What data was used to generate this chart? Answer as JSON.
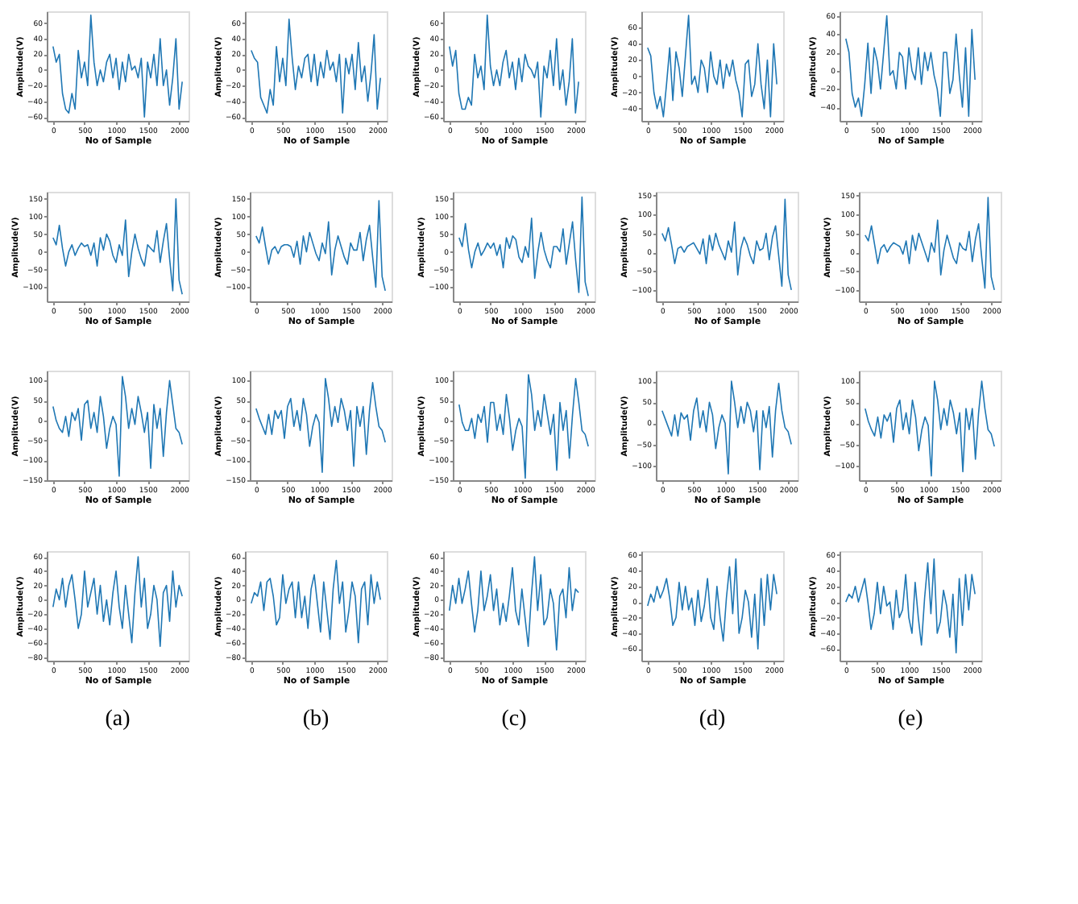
{
  "chart_data": [
    {
      "type": "line",
      "xlabel": "No of Sample",
      "ylabel": "Amplitude(V)",
      "xlim": [
        -100,
        2150
      ],
      "xticks": [
        0,
        500,
        1000,
        1500,
        2000
      ],
      "ylim": [
        -65,
        75
      ],
      "yticks": [
        -60,
        -40,
        -20,
        0,
        20,
        40,
        60
      ],
      "grid": false,
      "x": [
        0,
        50,
        100,
        150,
        200,
        250,
        300,
        350,
        400,
        450,
        500,
        550,
        600,
        650,
        700,
        750,
        800,
        850,
        900,
        950,
        1000,
        1050,
        1100,
        1150,
        1200,
        1250,
        1300,
        1350,
        1400,
        1450,
        1500,
        1550,
        1600,
        1650,
        1700,
        1750,
        1800,
        1850,
        1900,
        1950,
        2000,
        2050
      ],
      "series": [
        {
          "color": "#1f77b4",
          "values": [
            30,
            10,
            20,
            -30,
            -50,
            -55,
            -30,
            -50,
            25,
            -10,
            10,
            -20,
            70,
            10,
            -20,
            0,
            -15,
            10,
            20,
            -10,
            15,
            -25,
            10,
            -15,
            20,
            0,
            5,
            -10,
            15,
            -60,
            10,
            -10,
            20,
            -20,
            40,
            -20,
            0,
            -45,
            -10,
            40,
            -50,
            -15
          ]
        }
      ]
    },
    {
      "type": "line",
      "xlabel": "No of Sample",
      "ylabel": "Amplitude(V)",
      "xlim": [
        -100,
        2150
      ],
      "xticks": [
        0,
        500,
        1000,
        1500,
        2000
      ],
      "ylim": [
        -65,
        75
      ],
      "yticks": [
        -60,
        -40,
        -20,
        0,
        20,
        40,
        60
      ],
      "grid": false,
      "x": [
        0,
        50,
        100,
        150,
        200,
        250,
        300,
        350,
        400,
        450,
        500,
        550,
        600,
        650,
        700,
        750,
        800,
        850,
        900,
        950,
        1000,
        1050,
        1100,
        1150,
        1200,
        1250,
        1300,
        1350,
        1400,
        1450,
        1500,
        1550,
        1600,
        1650,
        1700,
        1750,
        1800,
        1850,
        1900,
        1950,
        2000,
        2050
      ],
      "series": [
        {
          "color": "#1f77b4",
          "values": [
            25,
            15,
            10,
            -35,
            -45,
            -55,
            -25,
            -45,
            30,
            -15,
            15,
            -20,
            65,
            15,
            -25,
            5,
            -10,
            15,
            20,
            -15,
            20,
            -20,
            10,
            -10,
            25,
            0,
            10,
            -15,
            20,
            -55,
            15,
            -5,
            20,
            -25,
            35,
            -15,
            5,
            -40,
            -5,
            45,
            -50,
            -10
          ]
        }
      ]
    },
    {
      "type": "line",
      "xlabel": "No of Sample",
      "ylabel": "Amplitude(V)",
      "xlim": [
        -100,
        2150
      ],
      "xticks": [
        0,
        500,
        1000,
        1500,
        2000
      ],
      "ylim": [
        -65,
        75
      ],
      "yticks": [
        -60,
        -40,
        -20,
        0,
        20,
        40,
        60
      ],
      "grid": false,
      "x": [
        0,
        50,
        100,
        150,
        200,
        250,
        300,
        350,
        400,
        450,
        500,
        550,
        600,
        650,
        700,
        750,
        800,
        850,
        900,
        950,
        1000,
        1050,
        1100,
        1150,
        1200,
        1250,
        1300,
        1350,
        1400,
        1450,
        1500,
        1550,
        1600,
        1650,
        1700,
        1750,
        1800,
        1850,
        1900,
        1950,
        2000,
        2050
      ],
      "series": [
        {
          "color": "#1f77b4",
          "values": [
            30,
            5,
            25,
            -30,
            -50,
            -50,
            -35,
            -45,
            20,
            -10,
            5,
            -25,
            70,
            5,
            -20,
            0,
            -20,
            10,
            25,
            -10,
            10,
            -25,
            15,
            -15,
            20,
            5,
            0,
            -10,
            10,
            -60,
            5,
            -10,
            25,
            -20,
            40,
            -25,
            0,
            -45,
            -15,
            40,
            -55,
            -15
          ]
        }
      ]
    },
    {
      "type": "line",
      "xlabel": "No of Sample",
      "ylabel": "Amplitude(V)",
      "xlim": [
        -100,
        2150
      ],
      "xticks": [
        0,
        500,
        1000,
        1500,
        2000
      ],
      "ylim": [
        -55,
        80
      ],
      "yticks": [
        -40,
        -20,
        0,
        20,
        40,
        60
      ],
      "grid": false,
      "x": [
        0,
        50,
        100,
        150,
        200,
        250,
        300,
        350,
        400,
        450,
        500,
        550,
        600,
        650,
        700,
        750,
        800,
        850,
        900,
        950,
        1000,
        1050,
        1100,
        1150,
        1200,
        1250,
        1300,
        1350,
        1400,
        1450,
        1500,
        1550,
        1600,
        1650,
        1700,
        1750,
        1800,
        1850,
        1900,
        1950,
        2000,
        2050
      ],
      "series": [
        {
          "color": "#1f77b4",
          "values": [
            35,
            25,
            -20,
            -40,
            -25,
            -50,
            -10,
            35,
            -30,
            30,
            10,
            -25,
            25,
            75,
            -10,
            0,
            -20,
            20,
            10,
            -20,
            30,
            0,
            -10,
            20,
            -15,
            15,
            0,
            20,
            -5,
            -20,
            -50,
            15,
            20,
            -25,
            -10,
            40,
            -10,
            -40,
            20,
            -50,
            40,
            -10
          ]
        }
      ]
    },
    {
      "type": "line",
      "xlabel": "No of Sample",
      "ylabel": "Amplitude(V)",
      "xlim": [
        -100,
        2150
      ],
      "xticks": [
        0,
        500,
        1000,
        1500,
        2000
      ],
      "ylim": [
        -55,
        65
      ],
      "yticks": [
        -40,
        -20,
        0,
        20,
        40,
        60
      ],
      "grid": false,
      "x": [
        0,
        50,
        100,
        150,
        200,
        250,
        300,
        350,
        400,
        450,
        500,
        550,
        600,
        650,
        700,
        750,
        800,
        850,
        900,
        950,
        1000,
        1050,
        1100,
        1150,
        1200,
        1250,
        1300,
        1350,
        1400,
        1450,
        1500,
        1550,
        1600,
        1650,
        1700,
        1750,
        1800,
        1850,
        1900,
        1950,
        2000,
        2050
      ],
      "series": [
        {
          "color": "#1f77b4",
          "values": [
            35,
            20,
            -25,
            -40,
            -30,
            -50,
            -15,
            30,
            -25,
            25,
            10,
            -20,
            20,
            60,
            -5,
            0,
            -20,
            20,
            15,
            -20,
            25,
            0,
            -10,
            25,
            -15,
            20,
            0,
            20,
            -5,
            -20,
            -50,
            20,
            20,
            -25,
            -10,
            40,
            -5,
            -40,
            25,
            -50,
            45,
            -10
          ]
        }
      ]
    },
    {
      "type": "line",
      "xlabel": "No of Sample",
      "ylabel": "Amplitude(V)",
      "xlim": [
        -100,
        2150
      ],
      "xticks": [
        0,
        500,
        1000,
        1500,
        2000
      ],
      "ylim": [
        -140,
        170
      ],
      "yticks": [
        -100,
        -50,
        0,
        50,
        100,
        150
      ],
      "grid": false,
      "x": [
        0,
        50,
        100,
        150,
        200,
        250,
        300,
        350,
        400,
        450,
        500,
        550,
        600,
        650,
        700,
        750,
        800,
        850,
        900,
        950,
        1000,
        1050,
        1100,
        1150,
        1200,
        1250,
        1300,
        1350,
        1400,
        1450,
        1500,
        1550,
        1600,
        1650,
        1700,
        1750,
        1800,
        1850,
        1900,
        1950,
        2000,
        2050
      ],
      "series": [
        {
          "color": "#1f77b4",
          "values": [
            40,
            20,
            75,
            10,
            -40,
            0,
            20,
            -10,
            10,
            25,
            15,
            20,
            -10,
            25,
            -40,
            40,
            5,
            50,
            30,
            -10,
            -30,
            20,
            -10,
            90,
            -70,
            0,
            50,
            10,
            -20,
            -40,
            20,
            10,
            0,
            60,
            -30,
            30,
            80,
            -20,
            -110,
            150,
            -80,
            -120
          ]
        }
      ]
    },
    {
      "type": "line",
      "xlabel": "No of Sample",
      "ylabel": "Amplitude(V)",
      "xlim": [
        -100,
        2150
      ],
      "xticks": [
        0,
        500,
        1000,
        1500,
        2000
      ],
      "ylim": [
        -140,
        170
      ],
      "yticks": [
        -100,
        -50,
        0,
        50,
        100,
        150
      ],
      "grid": false,
      "x": [
        0,
        50,
        100,
        150,
        200,
        250,
        300,
        350,
        400,
        450,
        500,
        550,
        600,
        650,
        700,
        750,
        800,
        850,
        900,
        950,
        1000,
        1050,
        1100,
        1150,
        1200,
        1250,
        1300,
        1350,
        1400,
        1450,
        1500,
        1550,
        1600,
        1650,
        1700,
        1750,
        1800,
        1850,
        1900,
        1950,
        2000,
        2050
      ],
      "series": [
        {
          "color": "#1f77b4",
          "values": [
            45,
            25,
            70,
            15,
            -35,
            5,
            15,
            -5,
            15,
            20,
            20,
            15,
            -15,
            30,
            -35,
            45,
            0,
            55,
            25,
            -5,
            -25,
            25,
            -5,
            85,
            -65,
            5,
            45,
            15,
            -15,
            -35,
            25,
            5,
            5,
            55,
            -25,
            35,
            75,
            -15,
            -100,
            145,
            -70,
            -110
          ]
        }
      ]
    },
    {
      "type": "line",
      "xlabel": "No of Sample",
      "ylabel": "Amplitude(V)",
      "xlim": [
        -100,
        2150
      ],
      "xticks": [
        0,
        500,
        1000,
        1500,
        2000
      ],
      "ylim": [
        -140,
        170
      ],
      "yticks": [
        -100,
        -50,
        0,
        50,
        100,
        150
      ],
      "grid": false,
      "x": [
        0,
        50,
        100,
        150,
        200,
        250,
        300,
        350,
        400,
        450,
        500,
        550,
        600,
        650,
        700,
        750,
        800,
        850,
        900,
        950,
        1000,
        1050,
        1100,
        1150,
        1200,
        1250,
        1300,
        1350,
        1400,
        1450,
        1500,
        1550,
        1600,
        1650,
        1700,
        1750,
        1800,
        1850,
        1900,
        1950,
        2000,
        2050
      ],
      "series": [
        {
          "color": "#1f77b4",
          "values": [
            40,
            15,
            80,
            5,
            -45,
            0,
            25,
            -10,
            5,
            25,
            10,
            25,
            -10,
            20,
            -45,
            40,
            10,
            45,
            35,
            -15,
            -30,
            15,
            -15,
            95,
            -75,
            0,
            55,
            5,
            -25,
            -45,
            15,
            15,
            0,
            65,
            -35,
            25,
            85,
            -25,
            -115,
            155,
            -85,
            -125
          ]
        }
      ]
    },
    {
      "type": "line",
      "xlabel": "No of Sample",
      "ylabel": "Amplitude(V)",
      "xlim": [
        -100,
        2150
      ],
      "xticks": [
        0,
        500,
        1000,
        1500,
        2000
      ],
      "ylim": [
        -130,
        160
      ],
      "yticks": [
        -100,
        -50,
        0,
        50,
        100,
        150
      ],
      "grid": false,
      "x": [
        0,
        50,
        100,
        150,
        200,
        250,
        300,
        350,
        400,
        450,
        500,
        550,
        600,
        650,
        700,
        750,
        800,
        850,
        900,
        950,
        1000,
        1050,
        1100,
        1150,
        1200,
        1250,
        1300,
        1350,
        1400,
        1450,
        1500,
        1550,
        1600,
        1650,
        1700,
        1750,
        1800,
        1850,
        1900,
        1950,
        2000,
        2050
      ],
      "series": [
        {
          "color": "#1f77b4",
          "values": [
            50,
            30,
            65,
            20,
            -30,
            10,
            15,
            0,
            15,
            20,
            25,
            10,
            -5,
            35,
            -30,
            45,
            5,
            50,
            20,
            0,
            -20,
            30,
            0,
            80,
            -60,
            10,
            40,
            20,
            -10,
            -30,
            30,
            5,
            10,
            50,
            -20,
            40,
            70,
            -10,
            -90,
            140,
            -60,
            -100
          ]
        }
      ]
    },
    {
      "type": "line",
      "xlabel": "No of Sample",
      "ylabel": "Amplitude(V)",
      "xlim": [
        -100,
        2150
      ],
      "xticks": [
        0,
        500,
        1000,
        1500,
        2000
      ],
      "ylim": [
        -130,
        160
      ],
      "yticks": [
        -100,
        -50,
        0,
        50,
        100,
        150
      ],
      "grid": false,
      "x": [
        0,
        50,
        100,
        150,
        200,
        250,
        300,
        350,
        400,
        450,
        500,
        550,
        600,
        650,
        700,
        750,
        800,
        850,
        900,
        950,
        1000,
        1050,
        1100,
        1150,
        1200,
        1250,
        1300,
        1350,
        1400,
        1450,
        1500,
        1550,
        1600,
        1650,
        1700,
        1750,
        1800,
        1850,
        1900,
        1950,
        2000,
        2050
      ],
      "series": [
        {
          "color": "#1f77b4",
          "values": [
            45,
            30,
            70,
            20,
            -30,
            10,
            20,
            0,
            15,
            25,
            20,
            15,
            -5,
            30,
            -30,
            45,
            5,
            50,
            25,
            0,
            -25,
            25,
            0,
            85,
            -60,
            5,
            45,
            15,
            -15,
            -30,
            25,
            10,
            5,
            55,
            -25,
            35,
            75,
            -15,
            -95,
            145,
            -65,
            -100
          ]
        }
      ]
    },
    {
      "type": "line",
      "xlabel": "No of Sample",
      "ylabel": "Amplitude(V)",
      "xlim": [
        -100,
        2150
      ],
      "xticks": [
        0,
        500,
        1000,
        1500,
        2000
      ],
      "ylim": [
        -150,
        125
      ],
      "yticks": [
        -150,
        -100,
        -50,
        0,
        50,
        100
      ],
      "grid": false,
      "x": [
        0,
        50,
        100,
        150,
        200,
        250,
        300,
        350,
        400,
        450,
        500,
        550,
        600,
        650,
        700,
        750,
        800,
        850,
        900,
        950,
        1000,
        1050,
        1100,
        1150,
        1200,
        1250,
        1300,
        1350,
        1400,
        1450,
        1500,
        1550,
        1600,
        1650,
        1700,
        1750,
        1800,
        1850,
        1900,
        1950,
        2000,
        2050
      ],
      "series": [
        {
          "color": "#1f77b4",
          "values": [
            35,
            0,
            -20,
            -30,
            10,
            -40,
            20,
            0,
            30,
            -50,
            40,
            50,
            -20,
            20,
            -30,
            60,
            10,
            -70,
            -20,
            10,
            -10,
            -140,
            110,
            60,
            -20,
            30,
            -10,
            60,
            20,
            -30,
            20,
            -120,
            40,
            -20,
            30,
            -90,
            20,
            100,
            40,
            -20,
            -30,
            -60
          ]
        }
      ]
    },
    {
      "type": "line",
      "xlabel": "No of Sample",
      "ylabel": "Amplitude(V)",
      "xlim": [
        -100,
        2150
      ],
      "xticks": [
        0,
        500,
        1000,
        1500,
        2000
      ],
      "ylim": [
        -150,
        125
      ],
      "yticks": [
        -150,
        -100,
        -50,
        0,
        50,
        100
      ],
      "grid": false,
      "x": [
        0,
        50,
        100,
        150,
        200,
        250,
        300,
        350,
        400,
        450,
        500,
        550,
        600,
        650,
        700,
        750,
        800,
        850,
        900,
        950,
        1000,
        1050,
        1100,
        1150,
        1200,
        1250,
        1300,
        1350,
        1400,
        1450,
        1500,
        1550,
        1600,
        1650,
        1700,
        1750,
        1800,
        1850,
        1900,
        1950,
        2000,
        2050
      ],
      "series": [
        {
          "color": "#1f77b4",
          "values": [
            30,
            5,
            -15,
            -35,
            15,
            -35,
            25,
            5,
            25,
            -45,
            35,
            55,
            -15,
            25,
            -25,
            55,
            15,
            -65,
            -15,
            15,
            -5,
            -130,
            105,
            55,
            -15,
            35,
            -5,
            55,
            25,
            -25,
            25,
            -115,
            35,
            -15,
            35,
            -85,
            25,
            95,
            35,
            -15,
            -25,
            -55
          ]
        }
      ]
    },
    {
      "type": "line",
      "xlabel": "No of Sample",
      "ylabel": "Amplitude(V)",
      "xlim": [
        -100,
        2150
      ],
      "xticks": [
        0,
        500,
        1000,
        1500,
        2000
      ],
      "ylim": [
        -150,
        125
      ],
      "yticks": [
        -150,
        -100,
        -50,
        0,
        50,
        100
      ],
      "grid": false,
      "x": [
        0,
        50,
        100,
        150,
        200,
        250,
        300,
        350,
        400,
        450,
        500,
        550,
        600,
        650,
        700,
        750,
        800,
        850,
        900,
        950,
        1000,
        1050,
        1100,
        1150,
        1200,
        1250,
        1300,
        1350,
        1400,
        1450,
        1500,
        1550,
        1600,
        1650,
        1700,
        1750,
        1800,
        1850,
        1900,
        1950,
        2000,
        2050
      ],
      "series": [
        {
          "color": "#1f77b4",
          "values": [
            40,
            -5,
            -25,
            -25,
            5,
            -45,
            15,
            -5,
            35,
            -55,
            45,
            45,
            -25,
            15,
            -35,
            65,
            5,
            -75,
            -25,
            5,
            -15,
            -145,
            115,
            65,
            -25,
            25,
            -15,
            65,
            15,
            -35,
            15,
            -125,
            45,
            -25,
            25,
            -95,
            15,
            105,
            45,
            -25,
            -35,
            -65
          ]
        }
      ]
    },
    {
      "type": "line",
      "xlabel": "No of Sample",
      "ylabel": "Amplitude(V)",
      "xlim": [
        -100,
        2150
      ],
      "xticks": [
        0,
        500,
        1000,
        1500,
        2000
      ],
      "ylim": [
        -135,
        125
      ],
      "yticks": [
        -100,
        -50,
        0,
        50,
        100
      ],
      "grid": false,
      "x": [
        0,
        50,
        100,
        150,
        200,
        250,
        300,
        350,
        400,
        450,
        500,
        550,
        600,
        650,
        700,
        750,
        800,
        850,
        900,
        950,
        1000,
        1050,
        1100,
        1150,
        1200,
        1250,
        1300,
        1350,
        1400,
        1450,
        1500,
        1550,
        1600,
        1650,
        1700,
        1750,
        1800,
        1850,
        1900,
        1950,
        2000,
        2050
      ],
      "series": [
        {
          "color": "#1f77b4",
          "values": [
            30,
            10,
            -10,
            -30,
            20,
            -30,
            25,
            10,
            20,
            -40,
            30,
            60,
            -10,
            30,
            -20,
            50,
            20,
            -60,
            -10,
            20,
            0,
            -120,
            100,
            50,
            -10,
            40,
            0,
            50,
            30,
            -20,
            30,
            -110,
            30,
            -10,
            40,
            -80,
            30,
            95,
            30,
            -10,
            -20,
            -50
          ]
        }
      ]
    },
    {
      "type": "line",
      "xlabel": "No of Sample",
      "ylabel": "Amplitude(V)",
      "xlim": [
        -100,
        2150
      ],
      "xticks": [
        0,
        500,
        1000,
        1500,
        2000
      ],
      "ylim": [
        -135,
        125
      ],
      "yticks": [
        -100,
        -50,
        0,
        50,
        100
      ],
      "grid": false,
      "x": [
        0,
        50,
        100,
        150,
        200,
        250,
        300,
        350,
        400,
        450,
        500,
        550,
        600,
        650,
        700,
        750,
        800,
        850,
        900,
        950,
        1000,
        1050,
        1100,
        1150,
        1200,
        1250,
        1300,
        1350,
        1400,
        1450,
        1500,
        1550,
        1600,
        1650,
        1700,
        1750,
        1800,
        1850,
        1900,
        1950,
        2000,
        2050
      ],
      "series": [
        {
          "color": "#1f77b4",
          "values": [
            35,
            5,
            -15,
            -30,
            15,
            -35,
            20,
            5,
            25,
            -45,
            35,
            55,
            -15,
            25,
            -25,
            55,
            15,
            -65,
            -15,
            15,
            -5,
            -125,
            100,
            55,
            -15,
            35,
            -5,
            55,
            25,
            -25,
            25,
            -115,
            35,
            -15,
            35,
            -85,
            25,
            100,
            35,
            -15,
            -25,
            -55
          ]
        }
      ]
    },
    {
      "type": "line",
      "xlabel": "No of Sample",
      "ylabel": "Amplitude(V)",
      "xlim": [
        -100,
        2150
      ],
      "xticks": [
        0,
        500,
        1000,
        1500,
        2000
      ],
      "ylim": [
        -85,
        68
      ],
      "yticks": [
        -80,
        -60,
        -40,
        -20,
        0,
        20,
        40,
        60
      ],
      "grid": false,
      "x": [
        0,
        50,
        100,
        150,
        200,
        250,
        300,
        350,
        400,
        450,
        500,
        550,
        600,
        650,
        700,
        750,
        800,
        850,
        900,
        950,
        1000,
        1050,
        1100,
        1150,
        1200,
        1250,
        1300,
        1350,
        1400,
        1450,
        1500,
        1550,
        1600,
        1650,
        1700,
        1750,
        1800,
        1850,
        1900,
        1950,
        2000,
        2050
      ],
      "series": [
        {
          "color": "#1f77b4",
          "values": [
            -10,
            15,
            0,
            30,
            -10,
            20,
            35,
            0,
            -40,
            -20,
            40,
            -10,
            10,
            30,
            -20,
            20,
            -30,
            0,
            -35,
            10,
            40,
            -10,
            -40,
            20,
            -20,
            -60,
            10,
            60,
            -10,
            30,
            -40,
            -20,
            20,
            0,
            -65,
            10,
            20,
            -30,
            40,
            -10,
            20,
            5
          ]
        }
      ],
      "annotations": [
        "(a)"
      ]
    },
    {
      "type": "line",
      "xlabel": "No of Sample",
      "ylabel": "Amplitude(V)",
      "xlim": [
        -100,
        2150
      ],
      "xticks": [
        0,
        500,
        1000,
        1500,
        2000
      ],
      "ylim": [
        -85,
        68
      ],
      "yticks": [
        -80,
        -60,
        -40,
        -20,
        0,
        20,
        40,
        60
      ],
      "grid": false,
      "x": [
        0,
        50,
        100,
        150,
        200,
        250,
        300,
        350,
        400,
        450,
        500,
        550,
        600,
        650,
        700,
        750,
        800,
        850,
        900,
        950,
        1000,
        1050,
        1100,
        1150,
        1200,
        1250,
        1300,
        1350,
        1400,
        1450,
        1500,
        1550,
        1600,
        1650,
        1700,
        1750,
        1800,
        1850,
        1900,
        1950,
        2000,
        2050
      ],
      "series": [
        {
          "color": "#1f77b4",
          "values": [
            -5,
            10,
            5,
            25,
            -15,
            25,
            30,
            5,
            -35,
            -25,
            35,
            -5,
            15,
            25,
            -25,
            25,
            -25,
            5,
            -40,
            15,
            35,
            -5,
            -45,
            25,
            -15,
            -55,
            15,
            55,
            -5,
            25,
            -45,
            -15,
            25,
            5,
            -60,
            15,
            25,
            -35,
            35,
            -5,
            25,
            0
          ]
        }
      ],
      "annotations": [
        "(b)"
      ]
    },
    {
      "type": "line",
      "xlabel": "No of Sample",
      "ylabel": "Amplitude(V)",
      "xlim": [
        -100,
        2150
      ],
      "xticks": [
        0,
        500,
        1000,
        1500,
        2000
      ],
      "ylim": [
        -85,
        68
      ],
      "yticks": [
        -80,
        -60,
        -40,
        -20,
        0,
        20,
        40,
        60
      ],
      "grid": false,
      "x": [
        0,
        50,
        100,
        150,
        200,
        250,
        300,
        350,
        400,
        450,
        500,
        550,
        600,
        650,
        700,
        750,
        800,
        850,
        900,
        950,
        1000,
        1050,
        1100,
        1150,
        1200,
        1250,
        1300,
        1350,
        1400,
        1450,
        1500,
        1550,
        1600,
        1650,
        1700,
        1750,
        1800,
        1850,
        1900,
        1950,
        2000,
        2050
      ],
      "series": [
        {
          "color": "#1f77b4",
          "values": [
            -15,
            20,
            -5,
            30,
            -5,
            15,
            40,
            -5,
            -45,
            -15,
            40,
            -15,
            5,
            35,
            -15,
            15,
            -35,
            -5,
            -30,
            5,
            45,
            -15,
            -35,
            15,
            -25,
            -65,
            5,
            60,
            -15,
            35,
            -35,
            -25,
            15,
            -5,
            -70,
            5,
            15,
            -25,
            45,
            -15,
            15,
            10
          ]
        }
      ],
      "annotations": [
        "(c)"
      ]
    },
    {
      "type": "line",
      "xlabel": "No of Sample",
      "ylabel": "Amplitude(V)",
      "xlim": [
        -100,
        2150
      ],
      "xticks": [
        0,
        500,
        1000,
        1500,
        2000
      ],
      "ylim": [
        -75,
        65
      ],
      "yticks": [
        -60,
        -40,
        -20,
        0,
        20,
        40,
        60
      ],
      "grid": false,
      "x": [
        0,
        50,
        100,
        150,
        200,
        250,
        300,
        350,
        400,
        450,
        500,
        550,
        600,
        650,
        700,
        750,
        800,
        850,
        900,
        950,
        1000,
        1050,
        1100,
        1150,
        1200,
        1250,
        1300,
        1350,
        1400,
        1450,
        1500,
        1550,
        1600,
        1650,
        1700,
        1750,
        1800,
        1850,
        1900,
        1950,
        2000,
        2050
      ],
      "series": [
        {
          "color": "#1f77b4",
          "values": [
            -5,
            10,
            0,
            20,
            5,
            15,
            30,
            5,
            -30,
            -20,
            25,
            -10,
            20,
            -10,
            5,
            -30,
            15,
            -25,
            -5,
            30,
            -20,
            -35,
            20,
            -20,
            -50,
            5,
            45,
            -15,
            55,
            -40,
            -20,
            15,
            0,
            -45,
            10,
            -60,
            30,
            -30,
            35,
            -10,
            35,
            10
          ]
        }
      ],
      "annotations": [
        "(d)"
      ]
    },
    {
      "type": "line",
      "xlabel": "No of Sample",
      "ylabel": "Amplitude(V)",
      "xlim": [
        -100,
        2150
      ],
      "xticks": [
        0,
        500,
        1000,
        1500,
        2000
      ],
      "ylim": [
        -75,
        65
      ],
      "yticks": [
        -60,
        -40,
        -20,
        0,
        20,
        40,
        60
      ],
      "grid": false,
      "x": [
        0,
        50,
        100,
        150,
        200,
        250,
        300,
        350,
        400,
        450,
        500,
        550,
        600,
        650,
        700,
        750,
        800,
        850,
        900,
        950,
        1000,
        1050,
        1100,
        1150,
        1200,
        1250,
        1300,
        1350,
        1400,
        1450,
        1500,
        1550,
        1600,
        1650,
        1700,
        1750,
        1800,
        1850,
        1900,
        1950,
        2000,
        2050
      ],
      "series": [
        {
          "color": "#1f77b4",
          "values": [
            0,
            10,
            5,
            20,
            0,
            15,
            30,
            0,
            -35,
            -15,
            25,
            -15,
            20,
            -5,
            0,
            -35,
            15,
            -20,
            -10,
            35,
            -20,
            -40,
            25,
            -20,
            -55,
            5,
            50,
            -15,
            55,
            -40,
            -25,
            15,
            -5,
            -45,
            10,
            -65,
            30,
            -30,
            35,
            -10,
            35,
            10
          ]
        }
      ],
      "annotations": [
        "(e)"
      ]
    }
  ]
}
